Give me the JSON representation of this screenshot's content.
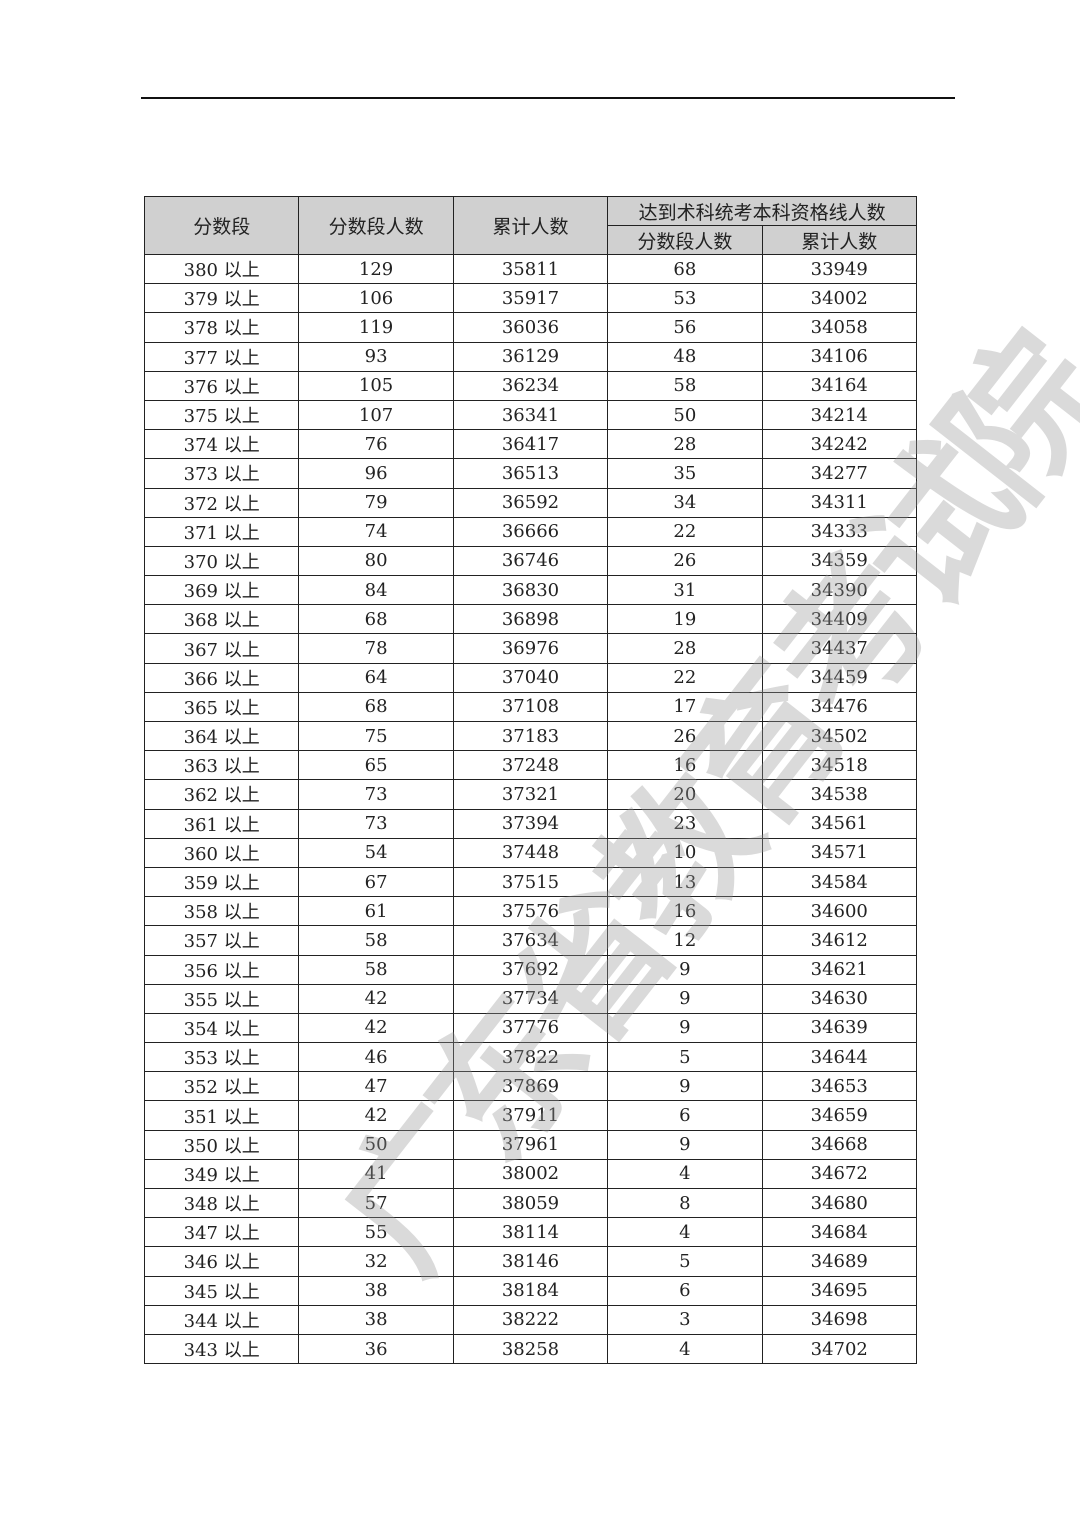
{
  "watermark": "广东省教育考试院",
  "table": {
    "headers": {
      "score": "分数段",
      "segment_count": "分数段人数",
      "cumulative": "累计人数",
      "group": "达到术科统考本科资格线人数",
      "group_segment_count": "分数段人数",
      "group_cumulative": "累计人数"
    },
    "rows": [
      [
        "380 以上",
        "129",
        "35811",
        "68",
        "33949"
      ],
      [
        "379 以上",
        "106",
        "35917",
        "53",
        "34002"
      ],
      [
        "378 以上",
        "119",
        "36036",
        "56",
        "34058"
      ],
      [
        "377 以上",
        "93",
        "36129",
        "48",
        "34106"
      ],
      [
        "376 以上",
        "105",
        "36234",
        "58",
        "34164"
      ],
      [
        "375 以上",
        "107",
        "36341",
        "50",
        "34214"
      ],
      [
        "374 以上",
        "76",
        "36417",
        "28",
        "34242"
      ],
      [
        "373 以上",
        "96",
        "36513",
        "35",
        "34277"
      ],
      [
        "372 以上",
        "79",
        "36592",
        "34",
        "34311"
      ],
      [
        "371 以上",
        "74",
        "36666",
        "22",
        "34333"
      ],
      [
        "370 以上",
        "80",
        "36746",
        "26",
        "34359"
      ],
      [
        "369 以上",
        "84",
        "36830",
        "31",
        "34390"
      ],
      [
        "368 以上",
        "68",
        "36898",
        "19",
        "34409"
      ],
      [
        "367 以上",
        "78",
        "36976",
        "28",
        "34437"
      ],
      [
        "366 以上",
        "64",
        "37040",
        "22",
        "34459"
      ],
      [
        "365 以上",
        "68",
        "37108",
        "17",
        "34476"
      ],
      [
        "364 以上",
        "75",
        "37183",
        "26",
        "34502"
      ],
      [
        "363 以上",
        "65",
        "37248",
        "16",
        "34518"
      ],
      [
        "362 以上",
        "73",
        "37321",
        "20",
        "34538"
      ],
      [
        "361 以上",
        "73",
        "37394",
        "23",
        "34561"
      ],
      [
        "360 以上",
        "54",
        "37448",
        "10",
        "34571"
      ],
      [
        "359 以上",
        "67",
        "37515",
        "13",
        "34584"
      ],
      [
        "358 以上",
        "61",
        "37576",
        "16",
        "34600"
      ],
      [
        "357 以上",
        "58",
        "37634",
        "12",
        "34612"
      ],
      [
        "356 以上",
        "58",
        "37692",
        "9",
        "34621"
      ],
      [
        "355 以上",
        "42",
        "37734",
        "9",
        "34630"
      ],
      [
        "354 以上",
        "42",
        "37776",
        "9",
        "34639"
      ],
      [
        "353 以上",
        "46",
        "37822",
        "5",
        "34644"
      ],
      [
        "352 以上",
        "47",
        "37869",
        "9",
        "34653"
      ],
      [
        "351 以上",
        "42",
        "37911",
        "6",
        "34659"
      ],
      [
        "350 以上",
        "50",
        "37961",
        "9",
        "34668"
      ],
      [
        "349 以上",
        "41",
        "38002",
        "4",
        "34672"
      ],
      [
        "348 以上",
        "57",
        "38059",
        "8",
        "34680"
      ],
      [
        "347 以上",
        "55",
        "38114",
        "4",
        "34684"
      ],
      [
        "346 以上",
        "32",
        "38146",
        "5",
        "34689"
      ],
      [
        "345 以上",
        "38",
        "38184",
        "6",
        "34695"
      ],
      [
        "344 以上",
        "38",
        "38222",
        "3",
        "34698"
      ],
      [
        "343 以上",
        "36",
        "38258",
        "4",
        "34702"
      ]
    ]
  }
}
